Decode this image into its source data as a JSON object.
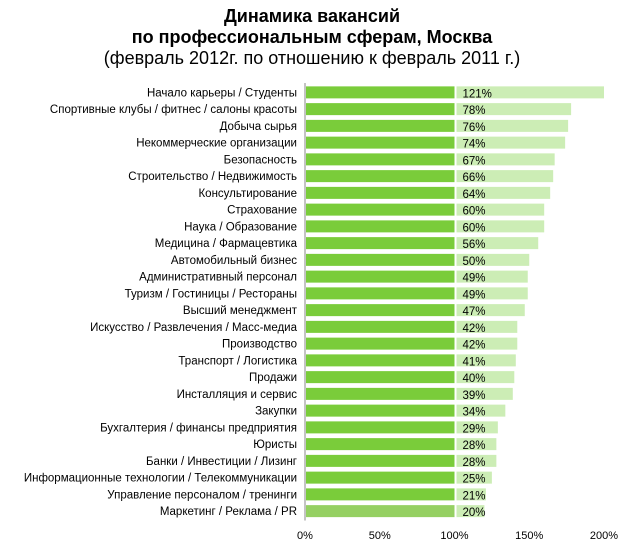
{
  "chart_data": {
    "type": "bar",
    "orientation": "horizontal",
    "stacked": true,
    "title": "Динамика вакансий",
    "subtitle1": "по профессиональным сферам, Москва",
    "subtitle2": "(февраль 2012г. по отношению к февраль 2011 г.)",
    "categories": [
      "Начало карьеры / Студенты",
      "Спортивные клубы / фитнес / салоны красоты",
      "Добыча сырья",
      "Некоммерческие организации",
      "Безопасность",
      "Строительство / Недвижимость",
      "Консультирование",
      "Страхование",
      "Наука / Образование",
      "Медицина / Фармацевтика",
      "Автомобильный бизнес",
      "Административный персонал",
      "Туризм / Гостиницы / Рестораны",
      "Высший менеджмент",
      "Искусство / Развлечения / Масс-медиа",
      "Производство",
      "Транспорт / Логистика",
      "Продажи",
      "Инсталляция и сервис",
      "Закупки",
      "Бухгалтерия / финансы предприятия",
      "Юристы",
      "Банки / Инвестиции / Лизинг",
      "Информационные технологии / Телекоммуникации",
      "Управление персоналом / тренинги",
      "Маркетинг / Реклама / PR"
    ],
    "base_value": 100,
    "values": [
      121,
      78,
      76,
      74,
      67,
      66,
      64,
      60,
      60,
      56,
      50,
      49,
      49,
      47,
      42,
      42,
      41,
      40,
      39,
      34,
      29,
      28,
      28,
      25,
      21,
      20
    ],
    "labels": [
      "121%",
      "78%",
      "76%",
      "74%",
      "67%",
      "66%",
      "64%",
      "60%",
      "60%",
      "56%",
      "50%",
      "49%",
      "49%",
      "47%",
      "42%",
      "42%",
      "41%",
      "40%",
      "39%",
      "34%",
      "29%",
      "28%",
      "28%",
      "25%",
      "21%",
      "20%"
    ],
    "xlim": [
      0,
      200
    ],
    "xticks": [
      "0%",
      "50%",
      "100%",
      "150%",
      "200%"
    ],
    "grid": false,
    "colors": {
      "base": "#7acc3a",
      "base_last": "#95d062",
      "increase": "#ccedb5"
    }
  }
}
